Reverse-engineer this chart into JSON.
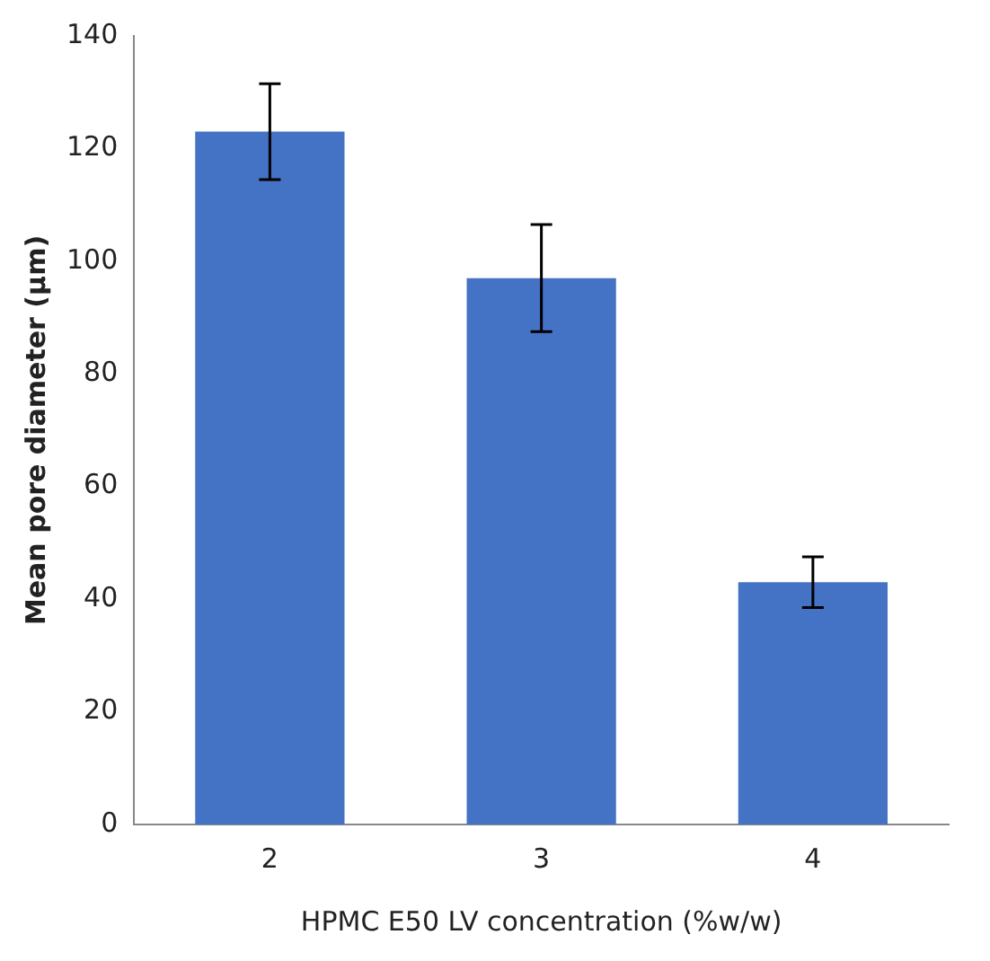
{
  "chart_data": {
    "type": "bar",
    "xlabel": "HPMC E50 LV concentration (%w/w)",
    "ylabel": "Mean pore diameter (µm)",
    "categories": [
      "2",
      "3",
      "4"
    ],
    "values": [
      123,
      97,
      43
    ],
    "errors": [
      8.5,
      9.5,
      4.5
    ],
    "color": "#4472c4",
    "ylim": [
      0,
      140
    ],
    "yticks": [
      0,
      20,
      40,
      60,
      80,
      100,
      120,
      140
    ],
    "grid": false,
    "legend": false
  }
}
